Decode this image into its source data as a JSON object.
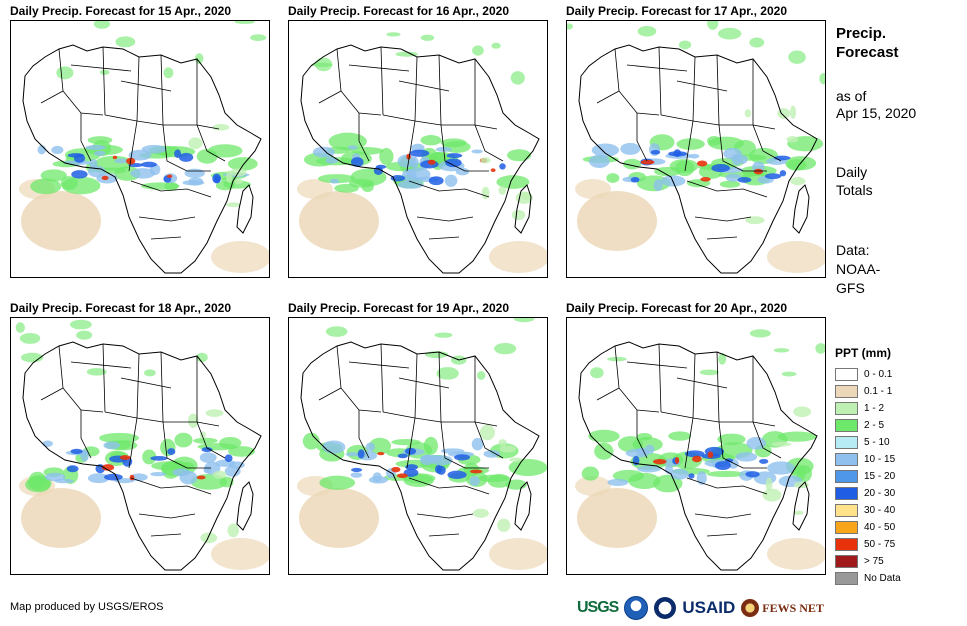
{
  "panels": [
    {
      "title": "Daily Precip. Forecast for 15 Apr., 2020"
    },
    {
      "title": "Daily Precip. Forecast for 16 Apr., 2020"
    },
    {
      "title": "Daily Precip. Forecast for 17 Apr., 2020"
    },
    {
      "title": "Daily Precip. Forecast for 18 Apr., 2020"
    },
    {
      "title": "Daily Precip. Forecast for 19 Apr., 2020"
    },
    {
      "title": "Daily Precip. Forecast for 20 Apr., 2020"
    }
  ],
  "side": {
    "title_line1": "Precip.",
    "title_line2": "Forecast",
    "asof_line1": "as of",
    "asof_line2": "Apr 15, 2020",
    "totals_line1": "Daily",
    "totals_line2": "Totals",
    "data_line1": "Data:",
    "data_line2": "NOAA-",
    "data_line3": "GFS"
  },
  "legend": {
    "title": "PPT (mm)",
    "items": [
      {
        "label": "0 - 0.1",
        "color": "#ffffff"
      },
      {
        "label": "0.1 - 1",
        "color": "#ecd8b8"
      },
      {
        "label": "1 - 2",
        "color": "#bff0b3"
      },
      {
        "label": "2 - 5",
        "color": "#6ee86a"
      },
      {
        "label": "5 - 10",
        "color": "#b7ecf4"
      },
      {
        "label": "10 - 15",
        "color": "#8fc0ee"
      },
      {
        "label": "15 - 20",
        "color": "#4f97e8"
      },
      {
        "label": "20 - 30",
        "color": "#1f5ee4"
      },
      {
        "label": "30 - 40",
        "color": "#ffe28a"
      },
      {
        "label": "40 - 50",
        "color": "#f7a51b"
      },
      {
        "label": "50 - 75",
        "color": "#e8320c"
      },
      {
        "label": "> 75",
        "color": "#a0191b"
      },
      {
        "label": "No Data",
        "color": "#999999"
      }
    ]
  },
  "credit": "Map produced by USGS/EROS",
  "logos": {
    "usgs": "USGS",
    "usaid": "USAID",
    "fews": "FEWS NET"
  },
  "colors": {
    "border": "#000000",
    "land": "#ffffff"
  }
}
